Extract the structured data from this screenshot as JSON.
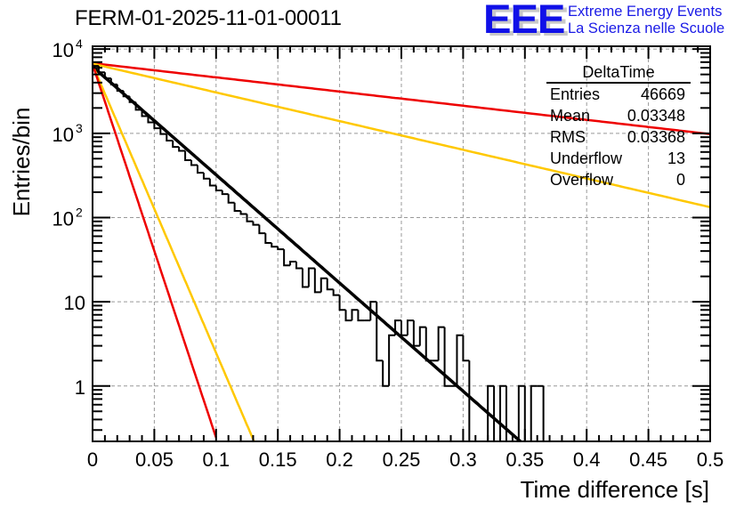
{
  "header": {
    "title": "FERM-01-2025-11-01-00011",
    "logo": {
      "mark": "EEE",
      "line1": "Extreme Energy Events",
      "line2": "La Scienza nelle Scuole"
    }
  },
  "stats_box": {
    "title": "DeltaTime",
    "rows": [
      {
        "label": "Entries",
        "value": "46669"
      },
      {
        "label": "Mean",
        "value": "0.03348"
      },
      {
        "label": "RMS",
        "value": "0.03368"
      },
      {
        "label": "Underflow",
        "value": "13"
      },
      {
        "label": "Overflow",
        "value": "0"
      }
    ]
  },
  "chart_data": {
    "type": "line",
    "title": "FERM-01-2025-11-01-00011",
    "xlabel": "Time difference [s]",
    "ylabel": "Entries/bin",
    "xlim": [
      0,
      0.5
    ],
    "ylim": [
      0.22,
      10800
    ],
    "yscale": "log",
    "grid": true,
    "legend": "top-right",
    "x_ticks": [
      "0",
      "0.05",
      "0.1",
      "0.15",
      "0.2",
      "0.25",
      "0.3",
      "0.35",
      "0.4",
      "0.45",
      "0.5"
    ],
    "x_tick_values": [
      0,
      0.05,
      0.1,
      0.15,
      0.2,
      0.25,
      0.3,
      0.35,
      0.4,
      0.45,
      0.5
    ],
    "y_ticks": [
      {
        "value": 10000,
        "base": "10",
        "exp": "4"
      },
      {
        "value": 1000,
        "base": "10",
        "exp": "3"
      },
      {
        "value": 100,
        "base": "10",
        "exp": "2"
      },
      {
        "value": 10,
        "base": "10",
        "exp": ""
      },
      {
        "value": 1,
        "base": "1",
        "exp": ""
      }
    ],
    "histogram": {
      "name": "DeltaTime",
      "color": "#000000",
      "bin_width": 0.005,
      "bin_start": 0,
      "values": [
        6300,
        5300,
        4500,
        3800,
        3200,
        2750,
        2350,
        1900,
        1600,
        1350,
        1150,
        980,
        820,
        690,
        620,
        480,
        420,
        340,
        290,
        240,
        210,
        190,
        150,
        120,
        110,
        90,
        82,
        65,
        50,
        45,
        42,
        27,
        30,
        25,
        15,
        25,
        13,
        19,
        14,
        12,
        8,
        6,
        8,
        6,
        6,
        10,
        2,
        1,
        4,
        6,
        4,
        6,
        3,
        5,
        2,
        2,
        5,
        1,
        1,
        4,
        2,
        0,
        0,
        0,
        1,
        0,
        1,
        0,
        0,
        1,
        0,
        1,
        1,
        0,
        0,
        0,
        0,
        0,
        0,
        0,
        0,
        0,
        0,
        0,
        0,
        0,
        0,
        0,
        0,
        0,
        0,
        0,
        0,
        0,
        0,
        0,
        0,
        0,
        0,
        0
      ]
    },
    "series": [
      {
        "name": "fit",
        "color": "#000000",
        "type": "exponential",
        "amplitude": 6200,
        "tau": 0.0338,
        "x_range": [
          0,
          0.35
        ]
      },
      {
        "name": "red-slow",
        "color": "#ee0000",
        "type": "exponential",
        "amplitude": 6800,
        "tau": 0.258,
        "x_range": [
          0,
          0.5
        ]
      },
      {
        "name": "yellow-slow",
        "color": "#ffc800",
        "type": "exponential",
        "amplitude": 6700,
        "tau": 0.1275,
        "x_range": [
          0,
          0.5
        ]
      },
      {
        "name": "yellow-fast",
        "color": "#ffc800",
        "type": "exponential",
        "amplitude": 6500,
        "tau": 0.0127,
        "x_range": [
          0,
          0.131
        ]
      },
      {
        "name": "red-fast",
        "color": "#ee0000",
        "type": "exponential",
        "amplitude": 6600,
        "tau": 0.0098,
        "x_range": [
          0,
          0.1
        ]
      }
    ]
  }
}
